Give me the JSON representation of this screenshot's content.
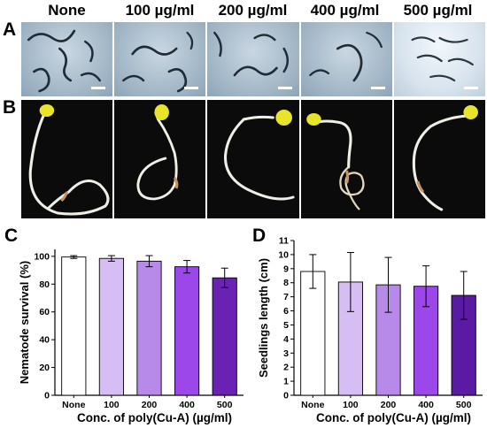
{
  "panels": {
    "a": "A",
    "b": "B",
    "c": "C",
    "d": "D"
  },
  "column_headers": [
    "None",
    "100 µg/ml",
    "200 µg/ml",
    "400 µg/ml",
    "500 µg/ml"
  ],
  "chart_data": [
    {
      "type": "bar",
      "panel": "C",
      "categories": [
        "None",
        "100",
        "200",
        "400",
        "500"
      ],
      "values": [
        99.5,
        98.5,
        96.5,
        92.5,
        84.5
      ],
      "errors": [
        1.0,
        2.0,
        4.0,
        4.5,
        7.0
      ],
      "xlabel": "Conc. of poly(Cu-A) (µg/ml)",
      "ylabel": "Nematode survival (%)",
      "ylim": [
        0,
        105
      ],
      "yticks": [
        0,
        20,
        40,
        60,
        80,
        100
      ],
      "colors": [
        "#ffffff",
        "#d6bdf3",
        "#b78ae9",
        "#9b47ea",
        "#6a22b4"
      ]
    },
    {
      "type": "bar",
      "panel": "D",
      "categories": [
        "None",
        "100",
        "200",
        "400",
        "500"
      ],
      "values": [
        8.8,
        8.05,
        7.85,
        7.75,
        7.1
      ],
      "errors": [
        1.2,
        2.1,
        1.95,
        1.45,
        1.7
      ],
      "xlabel": "Conc. of poly(Cu-A) (µg/ml)",
      "ylabel": "Seedlings length (cm)",
      "ylim": [
        0,
        11
      ],
      "yticks": [
        0,
        1,
        2,
        3,
        4,
        5,
        6,
        7,
        8,
        9,
        10,
        11
      ],
      "colors": [
        "#ffffff",
        "#d6bdf3",
        "#b78ae9",
        "#9b47ea",
        "#5a1aa4"
      ]
    }
  ]
}
